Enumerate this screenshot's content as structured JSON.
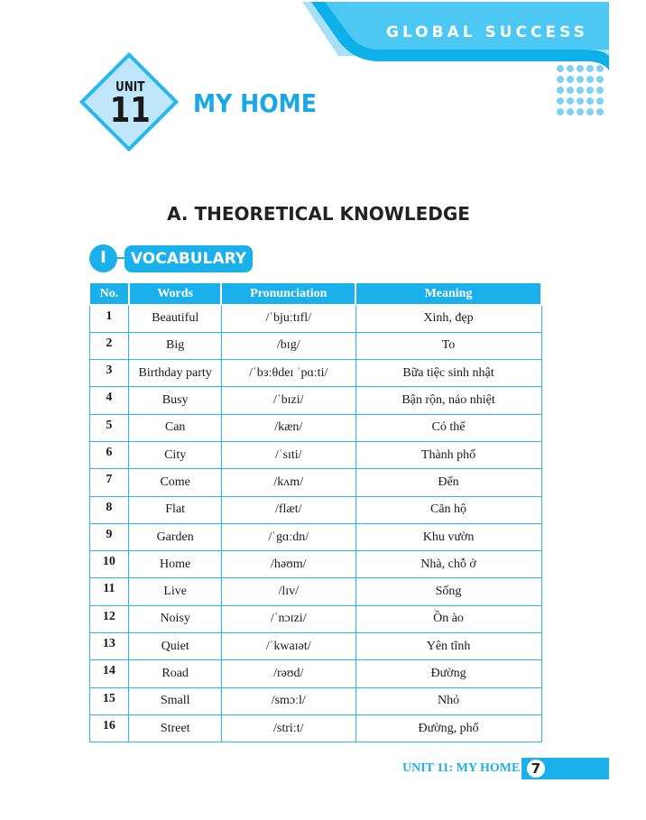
{
  "header": {
    "brand": "GLOBAL SUCCESS",
    "unit_label": "UNIT",
    "unit_number": "11",
    "unit_title": "MY HOME"
  },
  "section": {
    "title": "A. THEORETICAL KNOWLEDGE",
    "sub_number": "I",
    "sub_title": "VOCABULARY"
  },
  "table": {
    "columns": [
      "No.",
      "Words",
      "Pronunciation",
      "Meaning"
    ],
    "rows": [
      [
        "1",
        "Beautiful",
        "/ˈbjuːtɪfl/",
        "Xinh, đẹp"
      ],
      [
        "2",
        "Big",
        "/bɪg/",
        "To"
      ],
      [
        "3",
        "Birthday party",
        "/ˈbɜːθdeɪ ˈpɑːti/",
        "Bữa tiệc sinh nhật"
      ],
      [
        "4",
        "Busy",
        "/ˈbɪzi/",
        "Bận rộn, náo nhiệt"
      ],
      [
        "5",
        "Can",
        "/kæn/",
        "Có thể"
      ],
      [
        "6",
        "City",
        "/ˈsɪti/",
        "Thành phố"
      ],
      [
        "7",
        "Come",
        "/kʌm/",
        "Đến"
      ],
      [
        "8",
        "Flat",
        "/flæt/",
        "Căn hộ"
      ],
      [
        "9",
        "Garden",
        "/ˈgɑːdn/",
        "Khu vườn"
      ],
      [
        "10",
        "Home",
        "/həʊm/",
        "Nhà, chỗ ở"
      ],
      [
        "11",
        "Live",
        "/lɪv/",
        "Sống"
      ],
      [
        "12",
        "Noisy",
        "/ˈnɔɪzi/",
        "Ồn ào"
      ],
      [
        "13",
        "Quiet",
        "/ˈkwaɪət/",
        "Yên tĩnh"
      ],
      [
        "14",
        "Road",
        "/rəʊd/",
        "Đường"
      ],
      [
        "15",
        "Small",
        "/smɔːl/",
        "Nhỏ"
      ],
      [
        "16",
        "Street",
        "/striːt/",
        "Đường, phố"
      ]
    ]
  },
  "footer": {
    "label": "UNIT 11: MY HOME",
    "page": "7"
  },
  "colors": {
    "accent": "#1ab0ec",
    "light": "#bfe7f9"
  }
}
